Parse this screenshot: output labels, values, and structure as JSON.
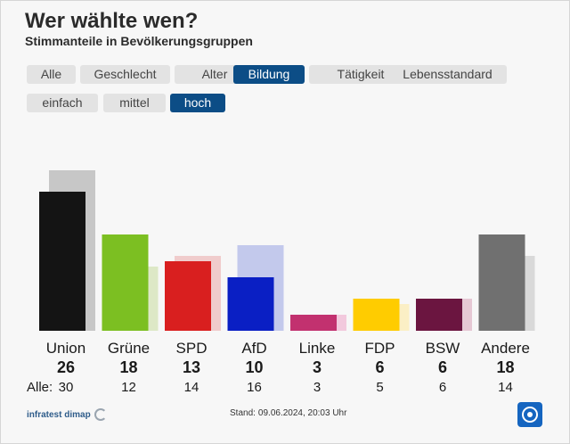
{
  "header": {
    "title": "Wer wählte wen?",
    "subtitle": "Stimmanteile in Bevölkerungsgruppen"
  },
  "tabs": [
    {
      "label": "Alle",
      "active": false
    },
    {
      "label": "Geschlecht",
      "active": false
    },
    {
      "label": "Alter",
      "active": false
    },
    {
      "label": "Bildung",
      "active": true
    },
    {
      "label": "Tätigkeit",
      "active": false
    },
    {
      "label": "Lebensstandard",
      "active": false
    }
  ],
  "subtabs": [
    {
      "label": "einfach",
      "active": false
    },
    {
      "label": "mittel",
      "active": false
    },
    {
      "label": "hoch",
      "active": true
    }
  ],
  "chart_data": {
    "type": "bar",
    "title": "Wer wählte wen?",
    "subtitle": "Stimmanteile in Bevölkerungsgruppen",
    "categories": [
      "Union",
      "Grüne",
      "SPD",
      "AfD",
      "Linke",
      "FDP",
      "BSW",
      "Andere"
    ],
    "colors": [
      "#141414",
      "#7cbf22",
      "#d91f1f",
      "#0a1fc4",
      "#c2316f",
      "#ffcc00",
      "#6b1540",
      "#707070"
    ],
    "compare_colors": [
      "#c7c7c7",
      "#dde8c6",
      "#f0cccc",
      "#c3c9ec",
      "#f2c9dd",
      "#fbefc5",
      "#e6c8d4",
      "#d9d9d9"
    ],
    "series": [
      {
        "name": "hoch",
        "values": [
          26,
          18,
          13,
          10,
          3,
          6,
          6,
          18
        ]
      },
      {
        "name": "Alle",
        "values": [
          30,
          12,
          14,
          16,
          3,
          5,
          6,
          14
        ]
      }
    ],
    "compare_label": "Alle:",
    "ylim": [
      0,
      30
    ]
  },
  "footer": {
    "source": "infratest dimap",
    "stand_label": "Stand:",
    "stand_value": "09.06.2024, 20:03 Uhr"
  },
  "icons": {
    "brand": "infratest-logo-icon",
    "tv": "tagesschau-logo-icon"
  }
}
